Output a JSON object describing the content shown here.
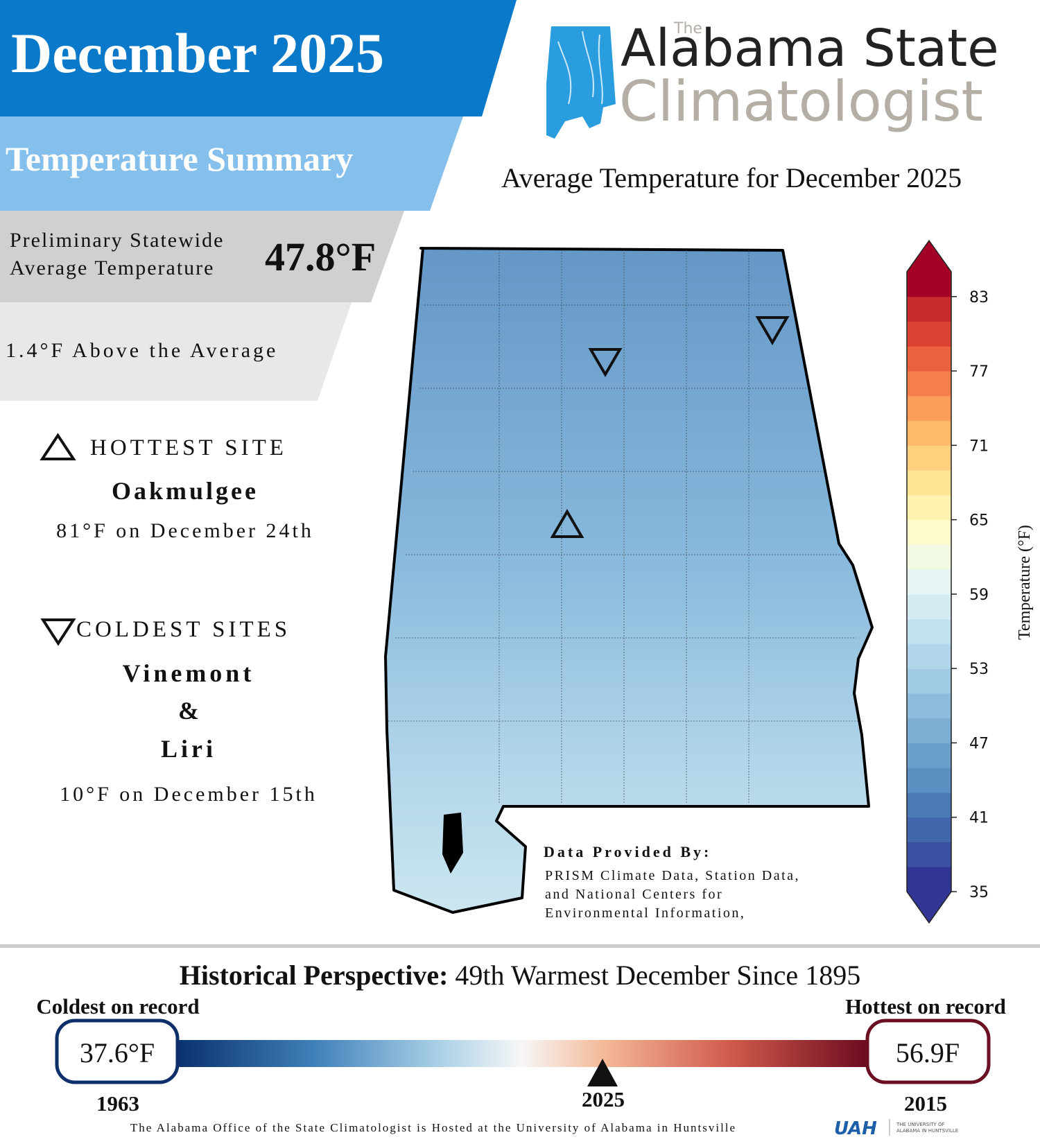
{
  "header": {
    "title": "December 2025",
    "subtitle": "Temperature Summary"
  },
  "statewide": {
    "label_lines": [
      "Preliminary Statewide",
      "Average Temperature"
    ],
    "value": "47.8°F",
    "anomaly": "1.4°F Above the Average"
  },
  "hottest": {
    "heading": "HOTTEST SITE",
    "sites": [
      "Oakmulgee"
    ],
    "detail": "81°F on December 24th"
  },
  "coldest": {
    "heading": "COLDEST SITES",
    "sites": [
      "Vinemont",
      "Liri"
    ],
    "connector": "&",
    "detail": "10°F on December 15th"
  },
  "logo": {
    "small": "The",
    "line1": "Alabama State",
    "line2": "Climatologist"
  },
  "map": {
    "title": "Average Temperature for December 2025",
    "credit_heading": "Data Provided By:",
    "credit_lines": [
      "PRISM Climate Data, Station Data,",
      "and National Centers for",
      "Environmental Information,"
    ]
  },
  "colorbar": {
    "label": "Temperature (°F)",
    "range": [
      35,
      85
    ],
    "ticks": [
      35,
      41,
      47,
      53,
      59,
      65,
      71,
      77,
      83
    ],
    "colors": [
      "#313695",
      "#3a4fa0",
      "#4265ab",
      "#4a7ab6",
      "#5a8fc1",
      "#6a9fcb",
      "#7caed4",
      "#8ebcdc",
      "#a0c9e3",
      "#b1d6ea",
      "#c2e2f0",
      "#d4ecf4",
      "#e6f5f3",
      "#f3fae3",
      "#fbfbcd",
      "#fef2b0",
      "#fee495",
      "#fdd17e",
      "#fdba6b",
      "#fb9e5a",
      "#f5804b",
      "#ec613d",
      "#dc4232",
      "#c8292b",
      "#a50026"
    ]
  },
  "history": {
    "heading": "Historical Perspective:",
    "text": "49th Warmest December Since 1895",
    "coldest_label": "Coldest on record",
    "coldest_value": "37.6°F",
    "coldest_year": "1963",
    "hottest_label": "Hottest on record",
    "hottest_value": "56.9F",
    "hottest_year": "2015",
    "current_year": "2025"
  },
  "footer": {
    "text": "The Alabama Office of the State Climatologist is Hosted at the University of Alabama in Huntsville",
    "uah": "UAH",
    "uah_name": [
      "THE UNIVERSITY OF",
      "ALABAMA IN HUNTSVILLE"
    ]
  }
}
